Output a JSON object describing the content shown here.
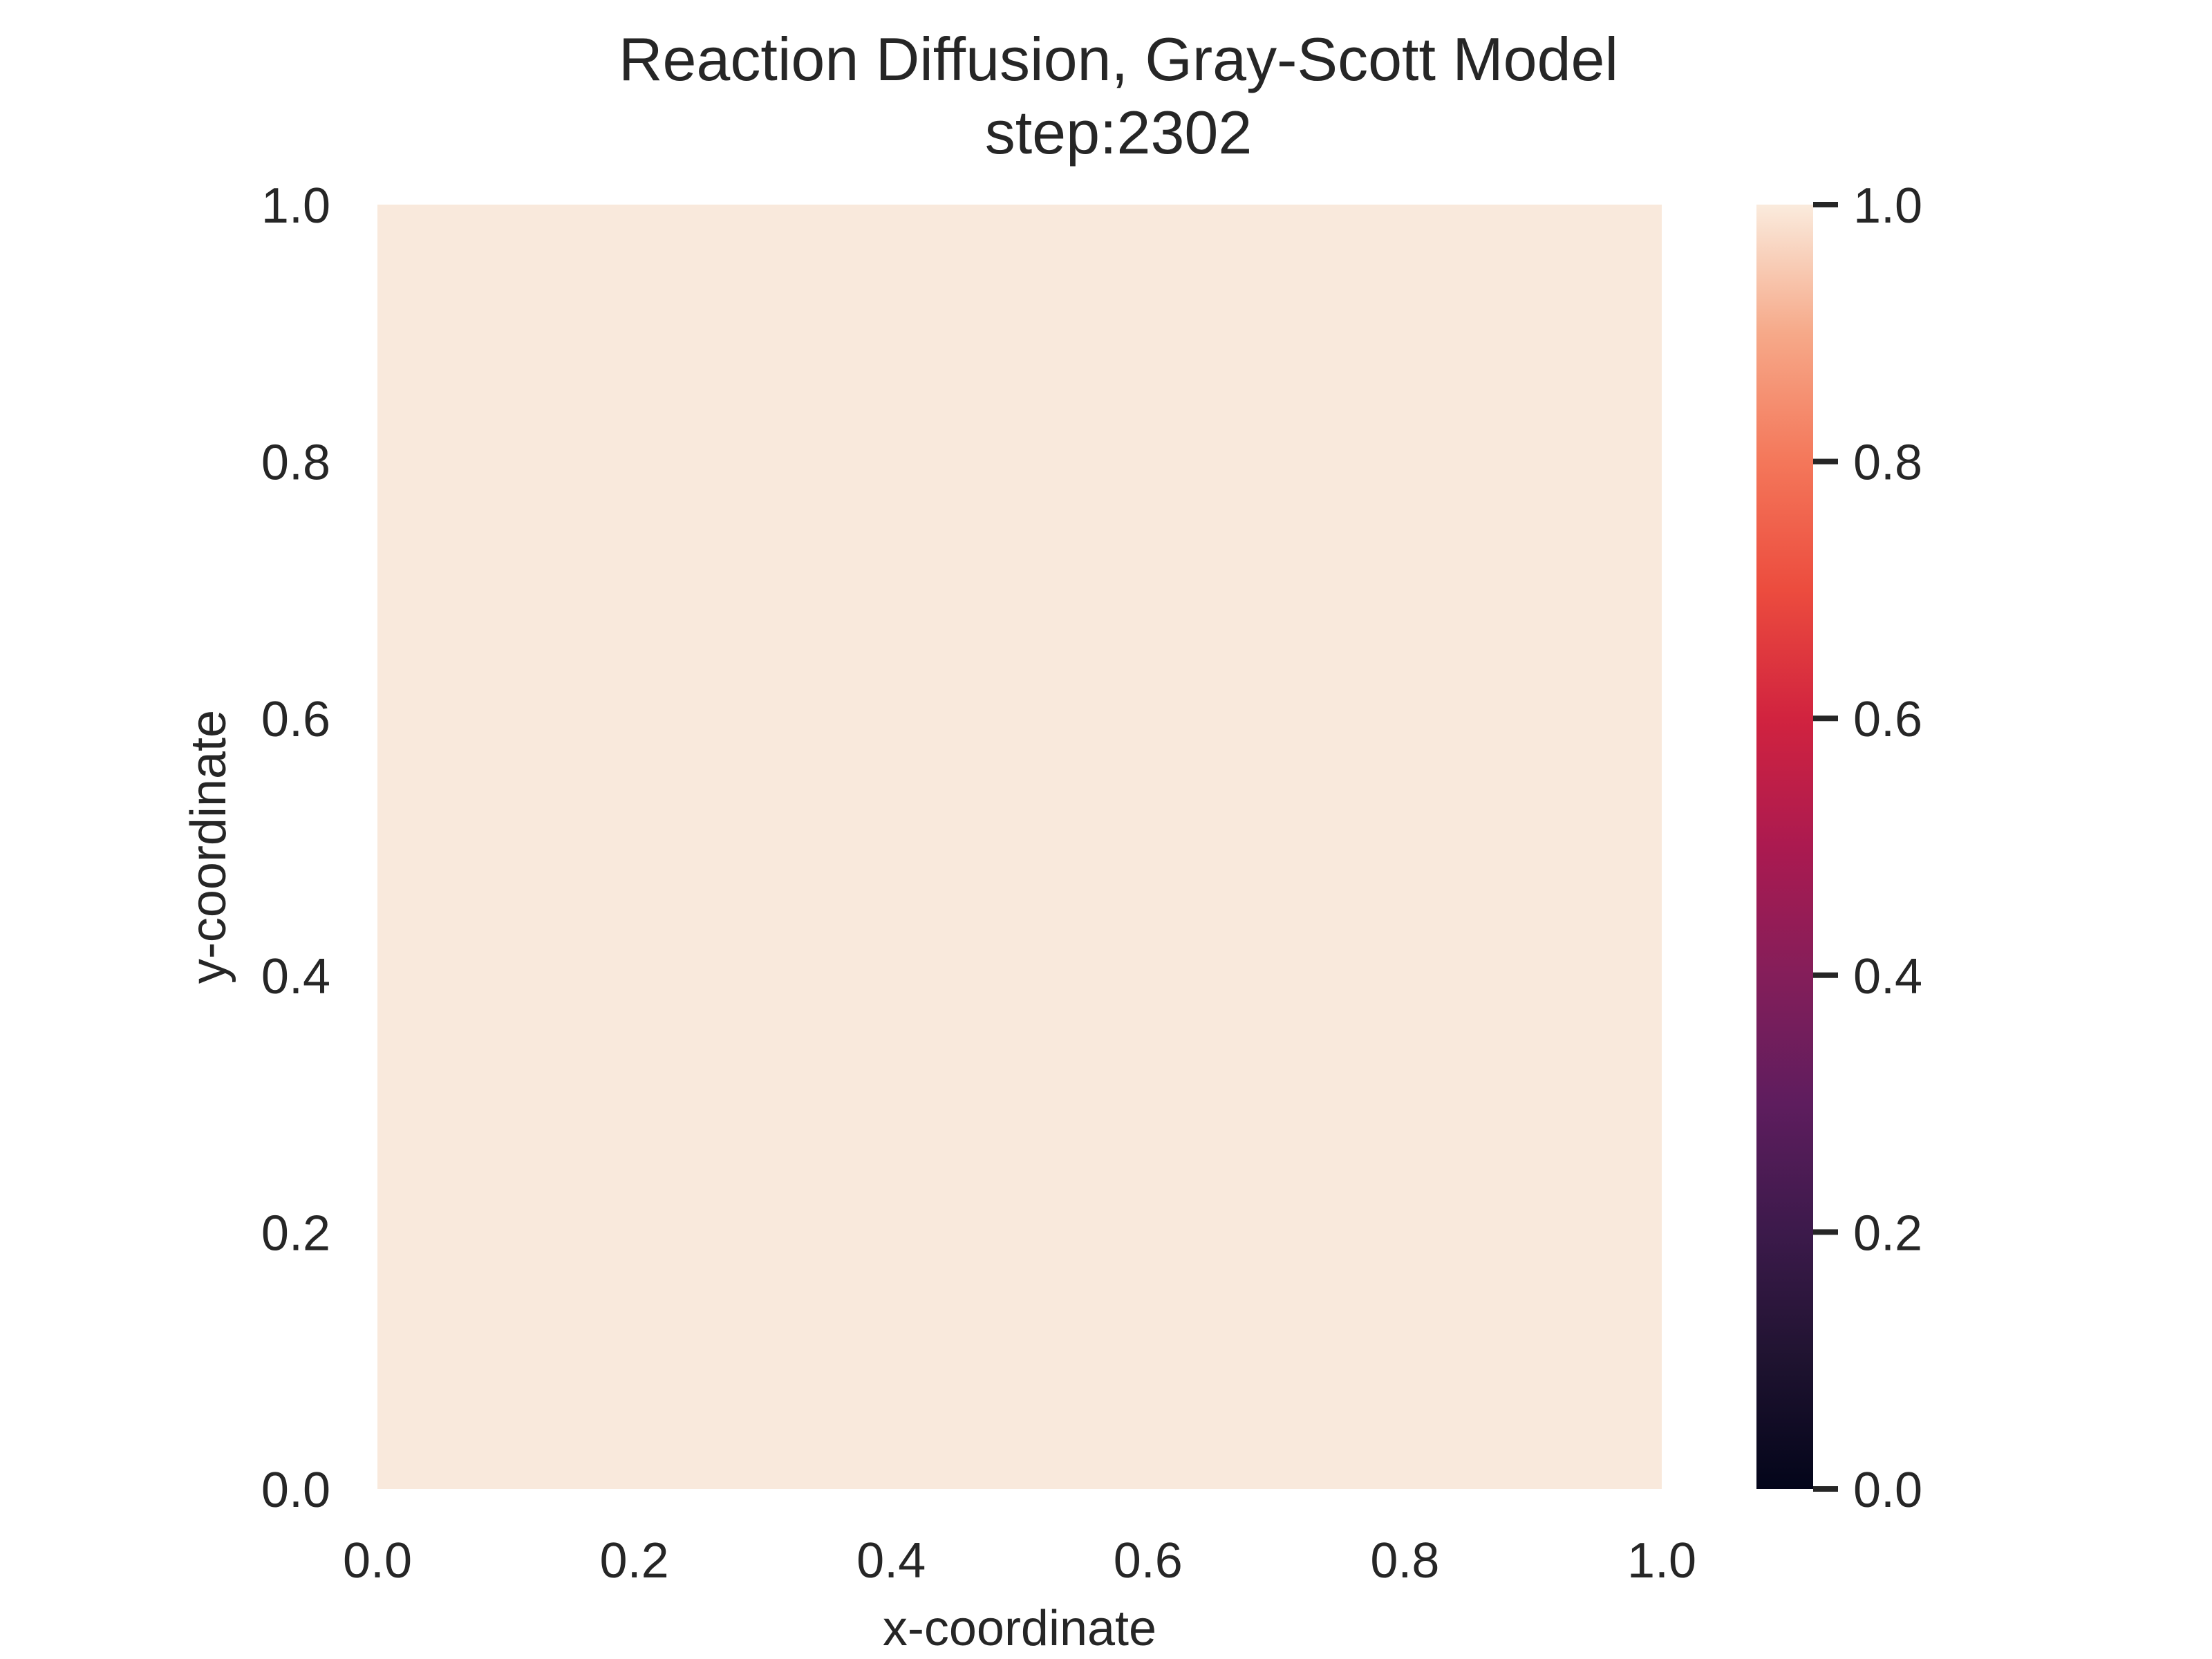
{
  "chart_data": {
    "type": "heatmap",
    "title": "Reaction Diffusion, Gray-Scott Model",
    "subtitle": "step:2302",
    "xlabel": "x-coordinate",
    "ylabel": "y-coordinate",
    "xlim": [
      0.0,
      1.0
    ],
    "ylim": [
      0.0,
      1.0
    ],
    "xticks": [
      "0.0",
      "0.2",
      "0.4",
      "0.6",
      "0.8",
      "1.0"
    ],
    "yticks": [
      "0.0",
      "0.2",
      "0.4",
      "0.6",
      "0.8",
      "1.0"
    ],
    "field": {
      "value": 1.0,
      "color": "#f9e9dc"
    },
    "grid": false,
    "colorbar": {
      "range": [
        0.0,
        1.0
      ],
      "ticks": [
        "0.0",
        "0.2",
        "0.4",
        "0.6",
        "0.8",
        "1.0"
      ],
      "colormap": "rocket",
      "colormap_stops": [
        {
          "value": 0.0,
          "color": "#03051a"
        },
        {
          "value": 0.1,
          "color": "#1f1330"
        },
        {
          "value": 0.2,
          "color": "#3c1a4b"
        },
        {
          "value": 0.3,
          "color": "#5e1d5e"
        },
        {
          "value": 0.4,
          "color": "#841e5a"
        },
        {
          "value": 0.5,
          "color": "#ab1a50"
        },
        {
          "value": 0.6,
          "color": "#d1233f"
        },
        {
          "value": 0.7,
          "color": "#ec4c3e"
        },
        {
          "value": 0.8,
          "color": "#f4775a"
        },
        {
          "value": 0.9,
          "color": "#f6a989"
        },
        {
          "value": 1.0,
          "color": "#faebdd"
        }
      ]
    }
  }
}
